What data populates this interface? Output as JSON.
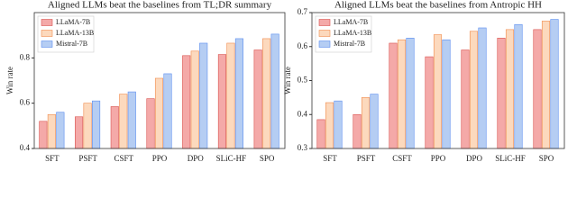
{
  "chart_data": [
    {
      "type": "bar",
      "title": "Aligned LLMs beat the baselines from TL;DR summary",
      "y_label": "Win rate",
      "categories": [
        "SFT",
        "PSFT",
        "CSFT",
        "PPO",
        "DPO",
        "SLiC-HF",
        "SPO"
      ],
      "series": [
        {
          "name": "LLaMA-7B",
          "color": "#f4a9a8",
          "edge_color": "#d9534f",
          "values": [
            0.52,
            0.54,
            0.585,
            0.62,
            0.81,
            0.815,
            0.835
          ]
        },
        {
          "name": "LLaMA-13B",
          "color": "#fcd9bd",
          "edge_color": "#f08a4b",
          "values": [
            0.55,
            0.6,
            0.64,
            0.71,
            0.83,
            0.865,
            0.885
          ]
        },
        {
          "name": "Mistral-7B",
          "color": "#b5cdf3",
          "edge_color": "#5b8def",
          "values": [
            0.56,
            0.61,
            0.65,
            0.73,
            0.865,
            0.885,
            0.905
          ]
        }
      ],
      "ylim": [
        0.4,
        1.0
      ],
      "yticks": [
        0.4,
        0.6,
        0.8
      ],
      "legend": "upper-left"
    },
    {
      "type": "bar",
      "title": "Aligned LLMs beat the baselines from Antropic HH",
      "y_label": "Win rate",
      "categories": [
        "SFT",
        "PSFT",
        "CSFT",
        "PPO",
        "DPO",
        "SLiC-HF",
        "SPO"
      ],
      "series": [
        {
          "name": "LLaMA-7B",
          "color": "#f4a9a8",
          "edge_color": "#d9534f",
          "values": [
            0.385,
            0.4,
            0.61,
            0.57,
            0.59,
            0.625,
            0.65
          ]
        },
        {
          "name": "LLaMA-13B",
          "color": "#fcd9bd",
          "edge_color": "#f08a4b",
          "values": [
            0.435,
            0.45,
            0.62,
            0.635,
            0.645,
            0.65,
            0.675
          ]
        },
        {
          "name": "Mistral-7B",
          "color": "#b5cdf3",
          "edge_color": "#5b8def",
          "values": [
            0.44,
            0.46,
            0.625,
            0.62,
            0.655,
            0.665,
            0.68
          ]
        }
      ],
      "ylim": [
        0.3,
        0.7
      ],
      "yticks": [
        0.3,
        0.4,
        0.5,
        0.6,
        0.7
      ],
      "legend": "upper-left"
    }
  ]
}
